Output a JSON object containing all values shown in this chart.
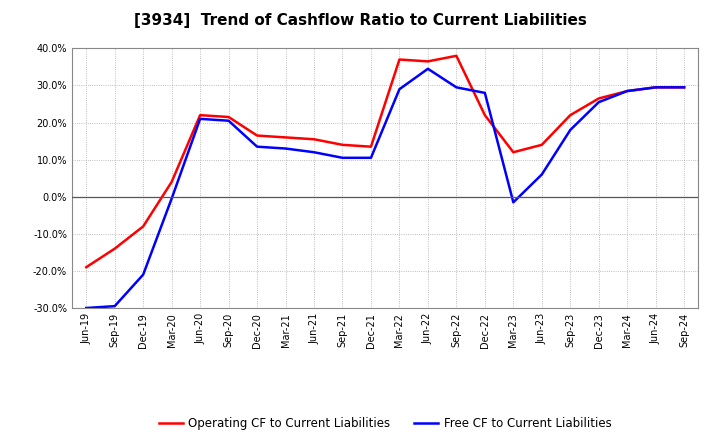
{
  "title": "[3934]  Trend of Cashflow Ratio to Current Liabilities",
  "x_labels": [
    "Jun-19",
    "Sep-19",
    "Dec-19",
    "Mar-20",
    "Jun-20",
    "Sep-20",
    "Dec-20",
    "Mar-21",
    "Jun-21",
    "Sep-21",
    "Dec-21",
    "Mar-22",
    "Jun-22",
    "Sep-22",
    "Dec-22",
    "Mar-23",
    "Jun-23",
    "Sep-23",
    "Dec-23",
    "Mar-24",
    "Jun-24",
    "Sep-24"
  ],
  "operating_cf": [
    -0.19,
    -0.14,
    -0.08,
    0.04,
    0.22,
    0.215,
    0.165,
    0.16,
    0.155,
    0.14,
    0.135,
    0.37,
    0.365,
    0.38,
    0.22,
    0.12,
    0.14,
    0.22,
    0.265,
    0.285,
    0.295,
    0.295
  ],
  "free_cf": [
    -0.3,
    -0.295,
    -0.21,
    -0.005,
    0.21,
    0.205,
    0.135,
    0.13,
    0.12,
    0.105,
    0.105,
    0.29,
    0.345,
    0.295,
    0.28,
    -0.015,
    0.06,
    0.18,
    0.255,
    0.285,
    0.295,
    0.295
  ],
  "operating_cf_color": "#FF0000",
  "free_cf_color": "#0000FF",
  "ylim_min": -0.3,
  "ylim_max": 0.4,
  "yticks": [
    -0.3,
    -0.2,
    -0.1,
    0.0,
    0.1,
    0.2,
    0.3,
    0.4
  ],
  "background_color": "#FFFFFF",
  "legend_operating": "Operating CF to Current Liabilities",
  "legend_free": "Free CF to Current Liabilities",
  "title_fontsize": 11,
  "tick_fontsize": 7,
  "legend_fontsize": 8.5,
  "linewidth": 1.8
}
